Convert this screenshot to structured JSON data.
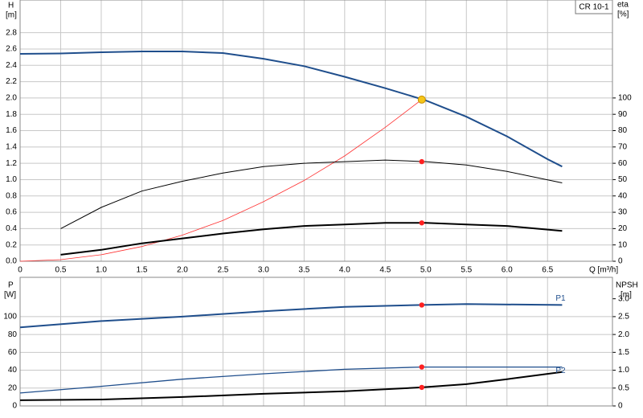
{
  "chart_data": [
    {
      "type": "line",
      "label": "CR 10-1",
      "ylabel": "H",
      "yunit": "[m]",
      "y2label": "eta",
      "y2unit": "[%]",
      "xlabel": "Q [m³/h]",
      "xlim": [
        0,
        7.3
      ],
      "xticks": [
        {
          "value": 0,
          "label": "0"
        },
        0.5,
        {
          "value": 1,
          "label": "1.0"
        },
        1.5,
        {
          "value": 2,
          "label": "2.0"
        },
        2.5,
        {
          "value": 3,
          "label": "3.0"
        },
        3.5,
        {
          "value": 4,
          "label": "4.0"
        },
        4.5,
        {
          "value": 5,
          "label": "5.0"
        },
        5.5,
        {
          "value": 6,
          "label": "6.0"
        },
        6.5
      ],
      "ylim": [
        0,
        3.2
      ],
      "yticks": [
        {
          "value": 0,
          "label": "0.0"
        },
        0.2,
        0.4,
        0.6,
        0.8,
        {
          "value": 1,
          "label": "1.0"
        },
        1.2,
        1.4,
        1.6,
        1.8,
        {
          "value": 2,
          "label": "2.0"
        },
        2.2,
        2.4,
        2.6,
        2.8
      ],
      "y2lim": [
        0,
        160
      ],
      "y2ticks": [
        0,
        10,
        20,
        30,
        40,
        50,
        60,
        70,
        80,
        90,
        100
      ],
      "grid": true,
      "series": [
        {
          "color": "#1f4e8c",
          "line_width": 2,
          "x": [
            0,
            0.5,
            1,
            1.5,
            2,
            2.5,
            3,
            3.5,
            4,
            4.5,
            5,
            5.5,
            6,
            6.5,
            6.68
          ],
          "values": [
            2.54,
            2.545,
            2.56,
            2.57,
            2.57,
            2.55,
            2.48,
            2.39,
            2.26,
            2.12,
            1.97,
            1.77,
            1.53,
            1.25,
            1.16
          ]
        },
        {
          "color": "#ff3030",
          "line_width": 0.8,
          "x": [
            0,
            0.5,
            1,
            1.5,
            2,
            2.5,
            3,
            3.5,
            4,
            4.5,
            4.95
          ],
          "values": [
            0,
            0.02,
            0.08,
            0.18,
            0.32,
            0.5,
            0.73,
            0.99,
            1.29,
            1.64,
            1.98
          ]
        },
        {
          "color": "#000000",
          "line_width": 1,
          "axis": "y2",
          "x": [
            0.5,
            1,
            1.5,
            2,
            2.5,
            3,
            3.5,
            4,
            4.5,
            5,
            5.5,
            6,
            6.68
          ],
          "values": [
            20,
            33,
            43,
            49,
            54,
            58,
            60,
            61,
            62,
            61,
            59,
            55,
            48
          ]
        },
        {
          "color": "#000000",
          "line_width": 2,
          "axis": "y2",
          "x": [
            0.5,
            1,
            1.5,
            2,
            2.5,
            3,
            3.5,
            4,
            4.5,
            5,
            5.5,
            6,
            6.68
          ],
          "values": [
            4,
            7,
            11,
            14,
            17,
            19.6,
            21.6,
            22.5,
            23.5,
            23.5,
            22.5,
            21.6,
            18.6
          ]
        }
      ],
      "points": [
        {
          "x": 4.95,
          "y": 1.98,
          "color": "#f5c518"
        },
        {
          "x": 4.95,
          "y": 61,
          "axis": "y2",
          "color": "#ff2020"
        },
        {
          "x": 4.95,
          "y": 23.5,
          "axis": "y2",
          "color": "#ff2020"
        }
      ]
    },
    {
      "type": "line",
      "ylabel": "P",
      "yunit": "[W]",
      "y2label": "NPSH",
      "y2unit": "[m]",
      "xlim": [
        0,
        7.3
      ],
      "ylim": [
        0,
        144
      ],
      "yticks": [
        0,
        20,
        40,
        60,
        80,
        100
      ],
      "y2lim": [
        0,
        3.6
      ],
      "y2ticks": [
        0,
        0.5,
        {
          "value": 1,
          "label": "1.0"
        },
        1.5,
        {
          "value": 2,
          "label": "2.0"
        },
        2.5,
        {
          "value": 3,
          "label": "3.0"
        }
      ],
      "grid": true,
      "series": [
        {
          "name": "P1",
          "color": "#1f4e8c",
          "line_width": 2,
          "x": [
            0,
            1,
            2,
            3,
            4,
            4.95,
            5.5,
            6.68
          ],
          "values": [
            88,
            95,
            100,
            106,
            111,
            113,
            114,
            113
          ]
        },
        {
          "name": "P2",
          "color": "#1f4e8c",
          "line_width": 1.3,
          "x": [
            0,
            1,
            2,
            3,
            4,
            4.95,
            6.68
          ],
          "values": [
            14.5,
            22,
            30,
            36,
            41,
            43.6,
            43.6
          ]
        },
        {
          "color": "#000000",
          "line_width": 2,
          "axis": "y2",
          "x": [
            0,
            1,
            2,
            3,
            4,
            4.95,
            5.5,
            6,
            6.68
          ],
          "values": [
            0.16,
            0.18,
            0.25,
            0.34,
            0.41,
            0.52,
            0.61,
            0.75,
            0.95
          ]
        }
      ],
      "points": [
        {
          "x": 4.95,
          "y": 113,
          "color": "#ff2020"
        },
        {
          "x": 4.95,
          "y": 43.6,
          "color": "#ff2020"
        },
        {
          "x": 4.95,
          "y": 0.52,
          "axis": "y2",
          "color": "#ff2020"
        }
      ]
    }
  ]
}
